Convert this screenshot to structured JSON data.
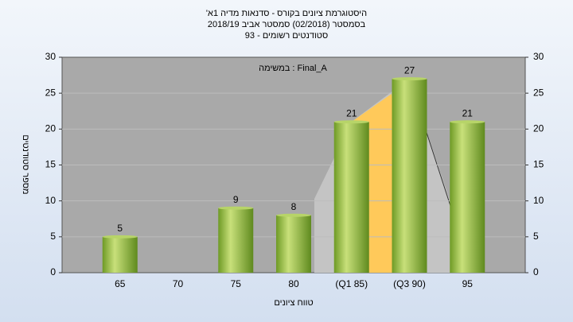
{
  "chart_data": {
    "type": "bar",
    "title": "'היסטוגרמת ציונים בקורס - סדנאות מדיה 1א",
    "subtitle": "בסמסטר (02/2018) סמסטר אביב 2018/19",
    "subtitle2": "93 - סטודנטים רשומים",
    "annotation": "במשימה : Final_A",
    "x_label": "טווח ציונים",
    "y_label": "מספר סטודנטים",
    "categories": [
      "65",
      "70",
      "75",
      "80",
      "(Q1 85)",
      "(Q3 90)",
      "95"
    ],
    "values": [
      5,
      null,
      9,
      8,
      21,
      27,
      21
    ],
    "color": "#8fb83a",
    "ylim": [
      0,
      30
    ],
    "yticks": [
      0,
      5,
      10,
      15,
      20,
      25,
      30
    ],
    "y2lim": [
      0,
      30
    ],
    "y2ticks": [
      0,
      5,
      10,
      15,
      20,
      25,
      30
    ],
    "grid": true
  }
}
